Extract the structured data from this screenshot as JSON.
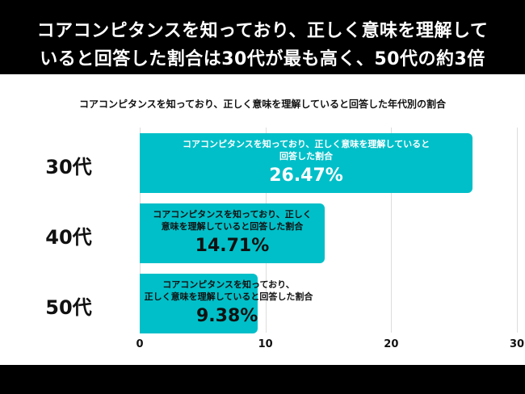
{
  "header": {
    "line1": "コアコンピタンスを知っており、正しく意味を理解して",
    "line2": "いると回答した割合は30代が最も高く、50代の約3倍"
  },
  "chart_data": {
    "type": "bar",
    "orientation": "horizontal",
    "title": "コアコンピタンスを知っており、正しく意味を理解していると回答した年代別の割合",
    "categories": [
      "30代",
      "40代",
      "50代"
    ],
    "values": [
      26.47,
      14.71,
      9.38
    ],
    "value_labels": [
      "26.47%",
      "14.71%",
      "9.38%"
    ],
    "bar_labels": [
      [
        "コアコンピタンスを知っており、正しく意味を理解していると",
        "回答した割合"
      ],
      [
        "コアコンピタンスを知っており、正しく",
        "意味を理解していると回答した割合"
      ],
      [
        "コアコンピタンスを知っており、",
        "正しく意味を理解していると回答した割合"
      ]
    ],
    "xlim": [
      0,
      30
    ],
    "xticks": [
      "0",
      "10",
      "20",
      "30"
    ],
    "grid": true,
    "bar_color": "#00bfc8"
  }
}
